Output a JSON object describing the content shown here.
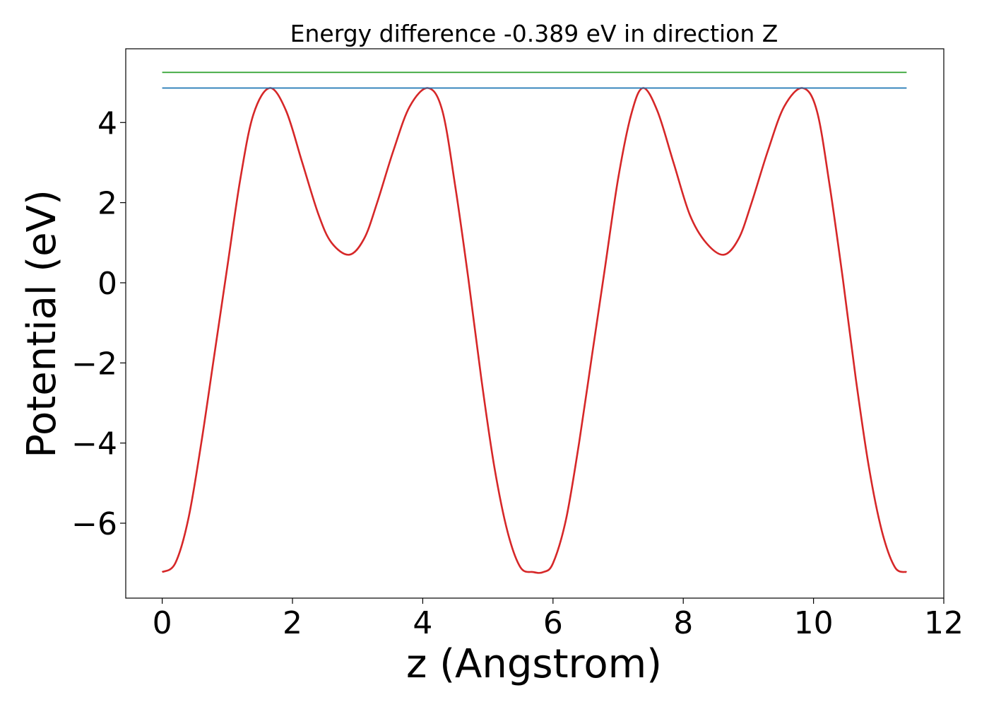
{
  "chart_data": {
    "type": "line",
    "title": "Energy difference -0.389 eV in direction Z",
    "xlabel": "z (Angstrom)",
    "ylabel": "Potential (eV)",
    "xlim": [
      -0.56,
      12.0
    ],
    "ylim": [
      -7.87,
      5.84
    ],
    "xticks": [
      0,
      2,
      4,
      6,
      8,
      10,
      12
    ],
    "xtick_labels": [
      "0",
      "2",
      "4",
      "6",
      "8",
      "10",
      "12"
    ],
    "yticks": [
      -6,
      -4,
      -2,
      0,
      2,
      4
    ],
    "ytick_labels": [
      "−6",
      "−4",
      "−2",
      "0",
      "2",
      "4"
    ],
    "grid": false,
    "series": [
      {
        "color": "#d62728",
        "x": [
          0.0,
          0.2,
          0.4,
          0.6,
          0.8,
          1.0,
          1.2,
          1.4,
          1.65,
          1.9,
          2.15,
          2.4,
          2.6,
          2.87,
          3.1,
          3.3,
          3.55,
          3.8,
          4.08,
          4.3,
          4.5,
          4.7,
          4.9,
          5.1,
          5.3,
          5.5,
          5.7,
          5.85,
          6.0,
          6.2,
          6.4,
          6.6,
          6.8,
          7.0,
          7.2,
          7.38,
          7.6,
          7.85,
          8.1,
          8.35,
          8.62,
          8.85,
          9.05,
          9.3,
          9.55,
          9.83,
          10.05,
          10.25,
          10.45,
          10.65,
          10.85,
          11.05,
          11.25,
          11.43
        ],
        "y": [
          -7.22,
          -7.0,
          -5.9,
          -4.0,
          -1.8,
          0.4,
          2.6,
          4.2,
          4.86,
          4.3,
          3.0,
          1.7,
          1.0,
          0.7,
          1.1,
          2.0,
          3.3,
          4.4,
          4.86,
          4.3,
          2.4,
          0.1,
          -2.4,
          -4.6,
          -6.2,
          -7.1,
          -7.22,
          -7.22,
          -7.0,
          -5.9,
          -4.0,
          -1.8,
          0.4,
          2.6,
          4.2,
          4.86,
          4.3,
          3.0,
          1.7,
          1.0,
          0.7,
          1.1,
          2.0,
          3.3,
          4.4,
          4.86,
          4.3,
          2.4,
          0.1,
          -2.4,
          -4.6,
          -6.2,
          -7.1,
          -7.22
        ]
      },
      {
        "color": "#1f77b4",
        "x": [
          0.0,
          11.43
        ],
        "y": [
          4.86,
          4.86
        ]
      },
      {
        "color": "#2ca02c",
        "x": [
          0.0,
          11.43
        ],
        "y": [
          5.25,
          5.25
        ]
      }
    ]
  }
}
